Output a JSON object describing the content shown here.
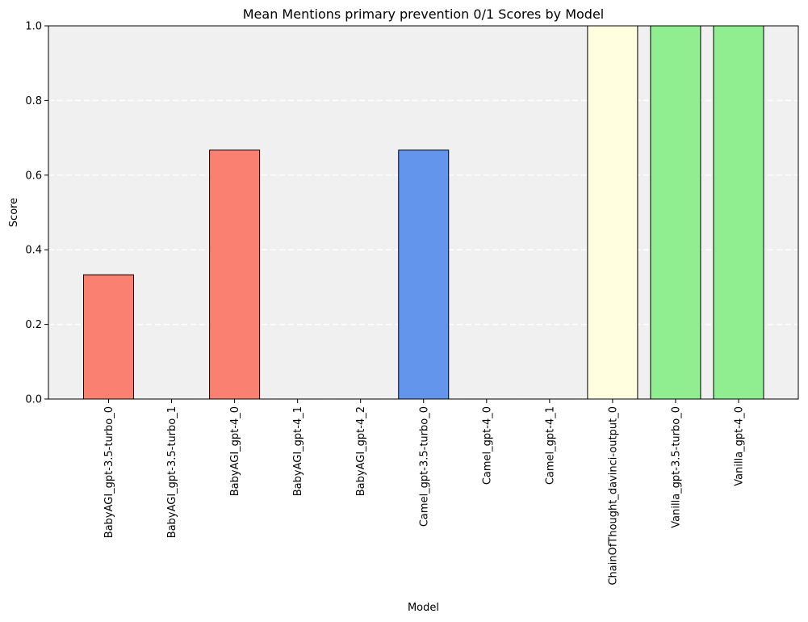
{
  "chart_data": {
    "type": "bar",
    "title": "Mean Mentions primary prevention 0/1 Scores by Model",
    "xlabel": "Model",
    "ylabel": "Score",
    "ylim": [
      0,
      1
    ],
    "yticks": [
      "0.0",
      "0.2",
      "0.4",
      "0.6",
      "0.8",
      "1.0"
    ],
    "grid": "y-dashed",
    "categories": [
      "BabyAGI_gpt-3.5-turbo_0",
      "BabyAGI_gpt-3.5-turbo_1",
      "BabyAGI_gpt-4_0",
      "BabyAGI_gpt-4_1",
      "BabyAGI_gpt-4_2",
      "Camel_gpt-3.5-turbo_0",
      "Camel_gpt-4_0",
      "Camel_gpt-4_1",
      "ChainOfThought_davinci-output_0",
      "Vanilla_gpt-3.5-turbo_0",
      "Vanilla_gpt-4_0"
    ],
    "values": [
      0.333,
      0,
      0.667,
      0,
      0,
      0.667,
      0,
      0,
      1.0,
      1.0,
      1.0
    ],
    "colors": [
      "#fa8072",
      "#fa8072",
      "#fa8072",
      "#fa8072",
      "#fa8072",
      "#6495ed",
      "#6495ed",
      "#6495ed",
      "#ffffe0",
      "#90ee90",
      "#90ee90"
    ],
    "plot_background": "#f0f0f0",
    "edge_color": "#000000"
  }
}
